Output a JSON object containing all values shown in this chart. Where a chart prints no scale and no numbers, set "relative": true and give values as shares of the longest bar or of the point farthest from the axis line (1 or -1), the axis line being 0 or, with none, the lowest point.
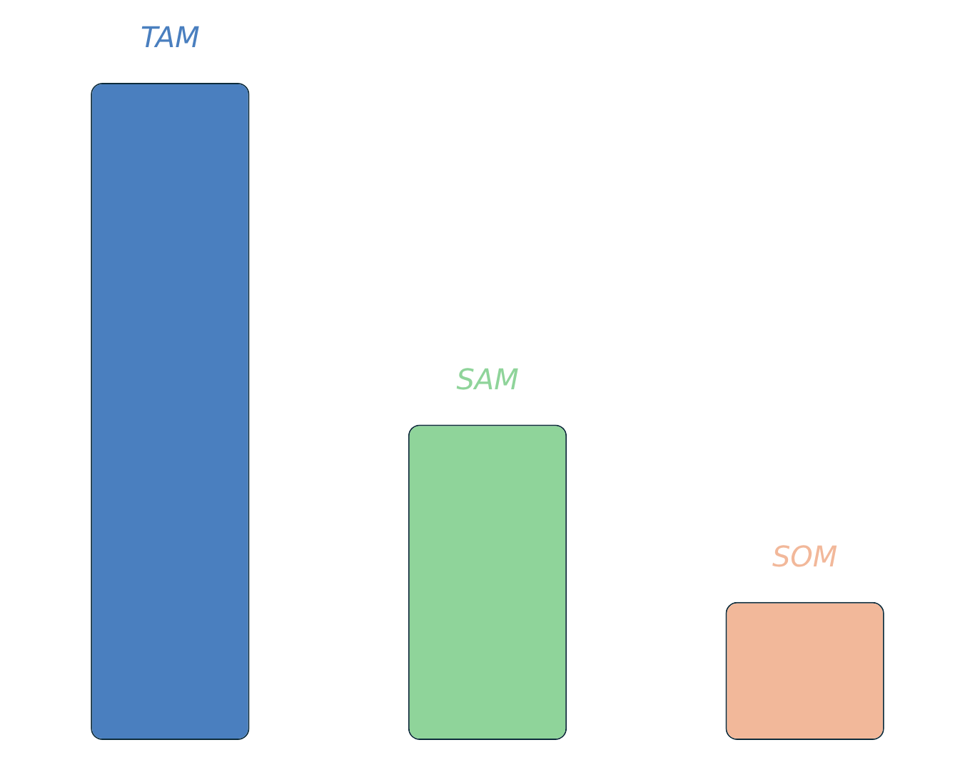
{
  "chart_data": {
    "type": "bar",
    "relative": true,
    "categories": [
      "TAM",
      "SAM",
      "SOM"
    ],
    "values": [
      1,
      0.48,
      0.21
    ],
    "colors": [
      "#4a7fbf",
      "#8fd49a",
      "#f2b89a"
    ],
    "legend": false
  }
}
